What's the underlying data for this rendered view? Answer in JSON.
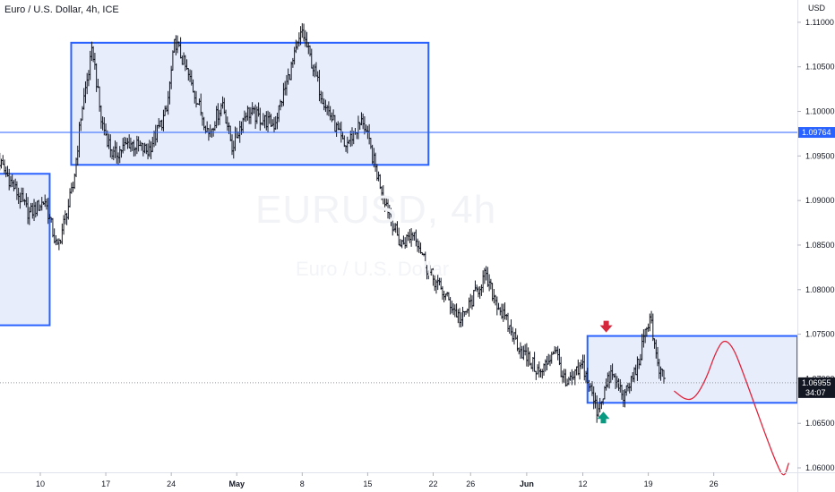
{
  "header": {
    "title": "Euro / U.S. Dollar, 4h, ICE",
    "currency": "USD"
  },
  "watermark": {
    "symbol": "EURUSD, 4h",
    "name": "Euro / U.S. Dollar"
  },
  "colors": {
    "candle": "#131722",
    "zone_fill": "#e8edfc",
    "zone_border": "#2962ff",
    "price_line": "#2962ff",
    "current_badge": "#2962ff",
    "last_badge": "#131722",
    "drawing": "#e0243c",
    "arrow_down": "#d5283c",
    "arrow_up": "#089981",
    "axis_text": "#131722"
  },
  "chart_data": {
    "type": "candlestick",
    "instrument": "Euro / U.S. Dollar",
    "timeframe": "4h",
    "exchange": "ICE",
    "currency": "USD",
    "y_range": [
      1.0595,
      1.1125
    ],
    "y_ticks": [
      {
        "value": 1.11,
        "label": "1.11000"
      },
      {
        "value": 1.105,
        "label": "1.10500"
      },
      {
        "value": 1.1,
        "label": "1.10000"
      },
      {
        "value": 1.095,
        "label": "1.09500"
      },
      {
        "value": 1.09,
        "label": "1.09000"
      },
      {
        "value": 1.085,
        "label": "1.08500"
      },
      {
        "value": 1.08,
        "label": "1.08000"
      },
      {
        "value": 1.075,
        "label": "1.07500"
      },
      {
        "value": 1.07,
        "label": "1.07000"
      },
      {
        "value": 1.065,
        "label": "1.06500"
      },
      {
        "value": 1.06,
        "label": "1.06000"
      }
    ],
    "x_ticks": [
      {
        "day": 10,
        "label": "10",
        "bold": false
      },
      {
        "day": 17,
        "label": "17",
        "bold": false
      },
      {
        "day": 24,
        "label": "24",
        "bold": false
      },
      {
        "day": 31,
        "label": "May",
        "bold": true
      },
      {
        "day": 38,
        "label": "8",
        "bold": false
      },
      {
        "day": 45,
        "label": "15",
        "bold": false
      },
      {
        "day": 52,
        "label": "22",
        "bold": false
      },
      {
        "day": 56,
        "label": "26",
        "bold": false
      },
      {
        "day": 62,
        "label": "Jun",
        "bold": true
      },
      {
        "day": 68,
        "label": "12",
        "bold": false
      },
      {
        "day": 75,
        "label": "19",
        "bold": false
      },
      {
        "day": 82,
        "label": "26",
        "bold": false
      }
    ],
    "price_path": [
      [
        5.0,
        1.0955
      ],
      [
        8.8,
        1.0885
      ],
      [
        10.5,
        1.09
      ],
      [
        11.8,
        1.0845
      ],
      [
        13.5,
        1.0915
      ],
      [
        14.4,
        1.1
      ],
      [
        15.6,
        1.107
      ],
      [
        16.5,
        1.099
      ],
      [
        17.8,
        1.095
      ],
      [
        19.5,
        1.0965
      ],
      [
        21.5,
        1.0955
      ],
      [
        23.5,
        1.1
      ],
      [
        24.4,
        1.108
      ],
      [
        26.0,
        1.1035
      ],
      [
        28.0,
        1.0975
      ],
      [
        29.5,
        1.101
      ],
      [
        30.5,
        1.096
      ],
      [
        32.0,
        1.1
      ],
      [
        35.0,
        1.0985
      ],
      [
        38.0,
        1.109
      ],
      [
        40.0,
        1.102
      ],
      [
        42.5,
        1.096
      ],
      [
        44.5,
        1.099
      ],
      [
        46.0,
        1.093
      ],
      [
        47.5,
        1.088
      ],
      [
        48.5,
        1.085
      ],
      [
        50.0,
        1.0865
      ],
      [
        51.5,
        1.082
      ],
      [
        53.5,
        1.079
      ],
      [
        55.0,
        1.0765
      ],
      [
        57.5,
        1.0815
      ],
      [
        59.5,
        1.077
      ],
      [
        61.5,
        1.073
      ],
      [
        63.5,
        1.0705
      ],
      [
        65.0,
        1.0735
      ],
      [
        66.2,
        1.069
      ],
      [
        68.0,
        1.0715
      ],
      [
        69.5,
        1.0665
      ],
      [
        71.0,
        1.0705
      ],
      [
        72.5,
        1.068
      ],
      [
        74.0,
        1.072
      ],
      [
        75.2,
        1.0773
      ],
      [
        76.0,
        1.0712
      ],
      [
        76.8,
        1.0696
      ]
    ],
    "zones": [
      {
        "name": "demand-zone-left",
        "day_from": 0.0,
        "day_to": 11.0,
        "price_top": 1.093,
        "price_bottom": 1.076
      },
      {
        "name": "supply-zone-top",
        "day_from": 13.3,
        "day_to": 51.5,
        "price_top": 1.1077,
        "price_bottom": 1.094
      },
      {
        "name": "zone-current",
        "day_from": 68.5,
        "day_to": 95.5,
        "price_top": 1.0748,
        "price_bottom": 1.0673
      }
    ],
    "horizontal_line": 1.09764,
    "current_price": {
      "value": 1.09764,
      "label": "1.09764"
    },
    "last_price": {
      "value": 1.06955,
      "label": "1.06955",
      "countdown": "34:07"
    },
    "projection_path": [
      [
        77.8,
        1.0686
      ],
      [
        79.0,
        1.0676
      ],
      [
        80.0,
        1.0678
      ],
      [
        81.2,
        1.07
      ],
      [
        82.2,
        1.073
      ],
      [
        83.1,
        1.0745
      ],
      [
        84.1,
        1.0735
      ],
      [
        85.2,
        1.0705
      ],
      [
        86.4,
        1.067
      ],
      [
        87.6,
        1.0635
      ],
      [
        88.7,
        1.0605
      ],
      [
        89.5,
        1.0588
      ],
      [
        90.0,
        1.0605
      ]
    ],
    "markers": [
      {
        "name": "arrow-down",
        "day": 70.5,
        "price": 1.0757
      },
      {
        "name": "arrow-up",
        "day": 70.2,
        "price": 1.0658
      }
    ]
  }
}
